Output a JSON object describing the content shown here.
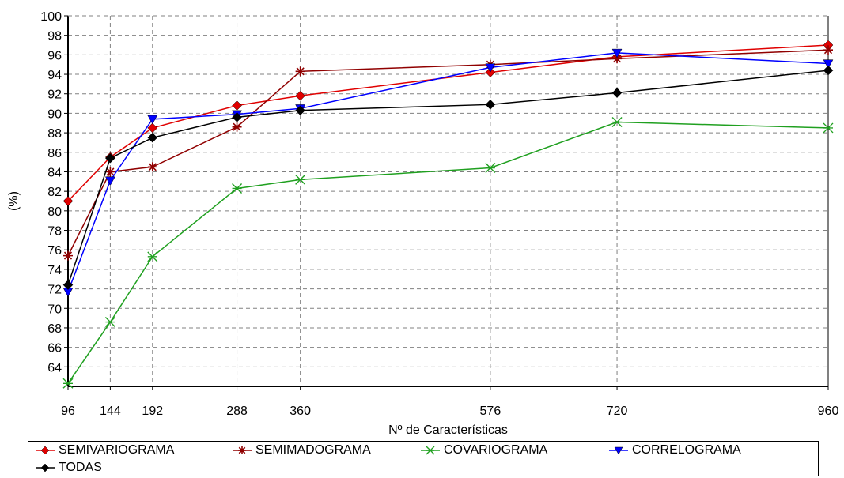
{
  "chart_data": {
    "type": "line",
    "xlabel": "Nº de Características",
    "ylabel": "(%)",
    "x": [
      96,
      144,
      192,
      288,
      360,
      576,
      720,
      960
    ],
    "xlim": [
      96,
      960
    ],
    "ylim": [
      62,
      100
    ],
    "yticks": [
      64,
      66,
      68,
      70,
      72,
      74,
      76,
      78,
      80,
      82,
      84,
      86,
      88,
      90,
      92,
      94,
      96,
      98,
      100
    ],
    "grid": true,
    "legend_position": "bottom",
    "series": [
      {
        "name": "SEMIVARIOGRAMA",
        "color": "#e00000",
        "marker": "diamond-filled",
        "values": [
          81.0,
          85.5,
          88.5,
          90.8,
          91.8,
          94.2,
          95.8,
          97.0
        ]
      },
      {
        "name": "SEMIMADOGRAMA",
        "color": "#900000",
        "marker": "asterisk",
        "values": [
          75.4,
          84.0,
          84.5,
          88.6,
          94.3,
          95.0,
          95.6,
          96.5
        ]
      },
      {
        "name": "COVARIOGRAMA",
        "color": "#20a020",
        "marker": "x",
        "values": [
          62.3,
          68.6,
          75.3,
          82.3,
          83.2,
          84.4,
          89.1,
          88.5
        ]
      },
      {
        "name": "CORRELOGRAMA",
        "color": "#0000ff",
        "marker": "triangle-down",
        "values": [
          71.7,
          83.1,
          89.4,
          89.9,
          90.5,
          94.7,
          96.2,
          95.1
        ]
      },
      {
        "name": "TODAS",
        "color": "#000000",
        "marker": "diamond-filled",
        "values": [
          72.4,
          85.4,
          87.5,
          89.6,
          90.3,
          90.9,
          92.1,
          94.4
        ]
      }
    ]
  }
}
